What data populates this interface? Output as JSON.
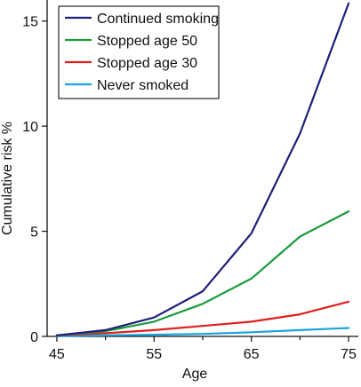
{
  "chart_data": {
    "type": "line",
    "title": "",
    "xlabel": "Age",
    "ylabel": "Cumulative risk %",
    "x": [
      45,
      50,
      55,
      60,
      65,
      70,
      75
    ],
    "xlim": [
      44,
      76
    ],
    "ylim": [
      0,
      16.0
    ],
    "xticks": [
      45,
      55,
      65,
      75
    ],
    "yticks": [
      0,
      5,
      10,
      15
    ],
    "grid": false,
    "legend_position": "top-left",
    "series": [
      {
        "name": "Continued smoking",
        "color": "#1f1f7a",
        "values": [
          0.05,
          0.3,
          0.9,
          2.15,
          4.9,
          9.65,
          15.85
        ]
      },
      {
        "name": "Stopped age 50",
        "color": "#1a9a3c",
        "values": [
          0.05,
          0.25,
          0.7,
          1.55,
          2.75,
          4.75,
          5.95
        ]
      },
      {
        "name": "Stopped age 30",
        "color": "#e01f1f",
        "values": [
          0.05,
          0.15,
          0.3,
          0.5,
          0.7,
          1.05,
          1.65
        ]
      },
      {
        "name": "Never smoked",
        "color": "#1aa3df",
        "values": [
          0.02,
          0.05,
          0.08,
          0.12,
          0.2,
          0.3,
          0.4
        ]
      }
    ]
  }
}
